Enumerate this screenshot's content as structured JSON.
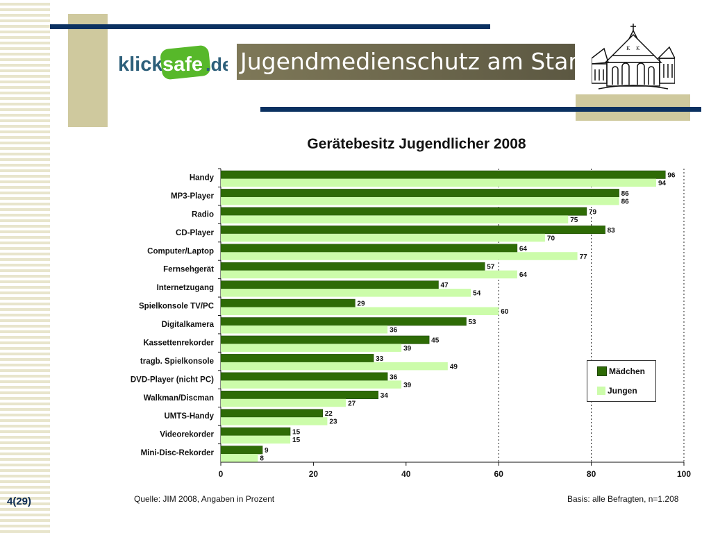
{
  "header": {
    "logo_text": "klicksafe.de",
    "title": "Jugendmedienschutz am Stama"
  },
  "slide_number": "4(29)",
  "colors": {
    "navy": "#0b3161",
    "tan": "#cfc99e",
    "dark_green": "#2e6b06",
    "light_green": "#ccfcaa"
  },
  "footer": {
    "source": "Quelle: JIM 2008, Angaben in Prozent",
    "basis": "Basis: alle Befragten, n=1.208"
  },
  "chart_data": {
    "type": "bar",
    "orientation": "horizontal",
    "title": "Gerätebesitz Jugendlicher 2008",
    "categories": [
      "Handy",
      "MP3-Player",
      "Radio",
      "CD-Player",
      "Computer/Laptop",
      "Fernsehgerät",
      "Internetzugang",
      "Spielkonsole TV/PC",
      "Digitalkamera",
      "Kassettenrekorder",
      "tragb. Spielkonsole",
      "DVD-Player (nicht PC)",
      "Walkman/Discman",
      "UMTS-Handy",
      "Videorekorder",
      "Mini-Disc-Rekorder"
    ],
    "series": [
      {
        "name": "Mädchen",
        "color": "#2e6b06",
        "values": [
          96,
          86,
          79,
          83,
          64,
          57,
          47,
          29,
          53,
          45,
          33,
          36,
          34,
          22,
          15,
          9
        ]
      },
      {
        "name": "Jungen",
        "color": "#ccfcaa",
        "values": [
          94,
          86,
          75,
          70,
          77,
          64,
          54,
          60,
          36,
          39,
          49,
          39,
          27,
          23,
          15,
          8
        ]
      }
    ],
    "xlim": [
      0,
      100
    ],
    "xticks": [
      0,
      20,
      40,
      60,
      80,
      100
    ],
    "grid": "dashed vertical lines at 60, 80, 100",
    "legend_position": "lower-right"
  }
}
